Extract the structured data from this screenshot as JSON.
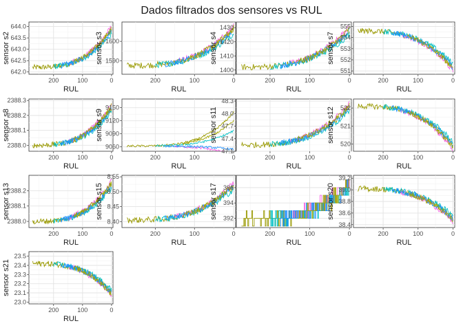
{
  "title": "Dados filtrados dos sensores vs RUL",
  "chart_data": {
    "type": "line",
    "xlabel": "RUL",
    "xlim": [
      285,
      -5
    ],
    "xticks": [
      200,
      100,
      0
    ],
    "reversed_x": true,
    "series_colors": [
      "#999900",
      "#f564e3",
      "#00bfc4",
      "#1e90ff",
      "#a3a500"
    ],
    "panels": [
      {
        "ylabel": "sensor s2",
        "ylim": [
          641.9,
          644.2
        ],
        "yticks": [
          "642.0",
          "642.5",
          "643.0",
          "643.5",
          "644.0"
        ],
        "yvals": [
          642.0,
          642.5,
          643.0,
          643.5,
          644.0
        ],
        "start": 642.2,
        "end": 643.85,
        "curve": "exp",
        "noise": 0.12
      },
      {
        "ylabel": "sensor s3",
        "ylim": [
          1583,
          1610
        ],
        "yticks": [
          "1590",
          "1600"
        ],
        "yvals": [
          1590,
          1600
        ],
        "start": 1587.5,
        "end": 1606,
        "curve": "exp",
        "noise": 1.6
      },
      {
        "ylabel": "sensor s4",
        "ylim": [
          1397,
          1434
        ],
        "yticks": [
          "1400",
          "1410",
          "1420",
          "1430"
        ],
        "yvals": [
          1400,
          1410,
          1420,
          1430
        ],
        "start": 1402,
        "end": 1428,
        "curve": "exp",
        "noise": 2.2
      },
      {
        "ylabel": "sensor s7",
        "ylim": [
          550.7,
          555.4
        ],
        "yticks": [
          "551",
          "552",
          "553",
          "554",
          "555"
        ],
        "yvals": [
          551,
          552,
          553,
          554,
          555
        ],
        "start": 554.6,
        "end": 551.3,
        "curve": "exp",
        "noise": 0.25
      },
      {
        "ylabel": "sensor s8",
        "ylim": [
          2387.96,
          2388.31
        ],
        "yticks": [
          "2388.0",
          "2388.1",
          "2388.2",
          "2388.3"
        ],
        "yvals": [
          2388.0,
          2388.1,
          2388.2,
          2388.3
        ],
        "start": 2388.0,
        "end": 2388.25,
        "curve": "exp",
        "noise": 0.018
      },
      {
        "ylabel": "sensor s9",
        "ylim": [
          9050,
          9170
        ],
        "yticks": [
          "9060",
          "9090",
          "9120",
          "9150"
        ],
        "yvals": [
          9060,
          9090,
          9120,
          9150
        ],
        "start": 9062,
        "end": 9140,
        "curve": "s9",
        "noise": 2.5
      },
      {
        "ylabel": "sensor s11",
        "ylim": [
          47.1,
          48.35
        ],
        "yticks": [
          "47.1",
          "47.4",
          "47.7",
          "48.0",
          "48.3"
        ],
        "yvals": [
          47.1,
          47.4,
          47.7,
          48.0,
          48.3
        ],
        "start": 47.25,
        "end": 48.15,
        "curve": "exp",
        "noise": 0.07
      },
      {
        "ylabel": "sensor s12",
        "ylim": [
          519.6,
          522.5
        ],
        "yticks": [
          "520",
          "521",
          "522"
        ],
        "yvals": [
          520,
          521,
          522
        ],
        "start": 522.1,
        "end": 519.9,
        "curve": "exp",
        "noise": 0.15
      },
      {
        "ylabel": "sensor s13",
        "ylim": [
          2387.96,
          2388.3
        ],
        "yticks": [
          "2388.0",
          "2388.1",
          "2388.2"
        ],
        "yvals": [
          2388.0,
          2388.1,
          2388.2
        ],
        "start": 2388.0,
        "end": 2388.24,
        "curve": "exp",
        "noise": 0.018
      },
      {
        "ylabel": "sensor s15",
        "ylim": [
          8.38,
          8.555
        ],
        "yticks": [
          "8.40",
          "8.45",
          "8.50",
          "8.55"
        ],
        "yvals": [
          8.4,
          8.45,
          8.5,
          8.55
        ],
        "start": 8.405,
        "end": 8.52,
        "curve": "exp",
        "noise": 0.01
      },
      {
        "ylabel": "sensor s17",
        "ylim": [
          390.8,
          397.6
        ],
        "yticks": [
          "392",
          "394",
          "396"
        ],
        "yvals": [
          392,
          394,
          396
        ],
        "start": 391.8,
        "end": 396.3,
        "curve": "step",
        "noise": 0.9
      },
      {
        "ylabel": "sensor s20",
        "ylim": [
          38.35,
          39.25
        ],
        "yticks": [
          "38.4",
          "38.6",
          "38.8",
          "39.0",
          "39.2"
        ],
        "yvals": [
          38.4,
          38.6,
          38.8,
          39.0,
          39.2
        ],
        "start": 39.02,
        "end": 38.5,
        "curve": "exp",
        "noise": 0.05
      },
      {
        "ylabel": "sensor s21",
        "ylim": [
          22.98,
          23.55
        ],
        "yticks": [
          "23.0",
          "23.1",
          "23.2",
          "23.3",
          "23.4",
          "23.5"
        ],
        "yvals": [
          23.0,
          23.1,
          23.2,
          23.3,
          23.4,
          23.5
        ],
        "start": 23.42,
        "end": 23.1,
        "curve": "exp",
        "noise": 0.03
      }
    ]
  }
}
